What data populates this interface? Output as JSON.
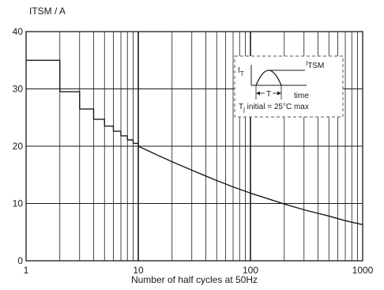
{
  "chart_data": {
    "type": "line",
    "ylabel": "ITSM / A",
    "xlabel": "Number of half cycles at 50Hz",
    "x_scale": "log",
    "xlim": [
      1,
      1000
    ],
    "ylim": [
      0,
      40
    ],
    "grid": true,
    "x_ticks": [
      {
        "value": 1,
        "label": "1"
      },
      {
        "value": 10,
        "label": "10"
      },
      {
        "value": 100,
        "label": "100"
      },
      {
        "value": 1000,
        "label": "1000"
      }
    ],
    "y_ticks": [
      {
        "value": 0,
        "label": "0"
      },
      {
        "value": 10,
        "label": "10"
      },
      {
        "value": 20,
        "label": "20"
      },
      {
        "value": 30,
        "label": "30"
      },
      {
        "value": 40,
        "label": "40"
      }
    ],
    "series": [
      {
        "x": [
          1,
          2,
          3,
          4,
          5,
          6,
          7,
          8,
          9,
          10,
          15,
          20,
          30,
          50,
          70,
          100,
          150,
          200,
          300,
          500,
          700,
          1000
        ],
        "y": [
          35,
          29.5,
          26.5,
          24.7,
          23.5,
          22.6,
          21.8,
          21.1,
          20.5,
          20,
          18.4,
          17.3,
          15.8,
          14,
          12.9,
          11.8,
          10.7,
          9.9,
          8.9,
          7.8,
          7,
          6.3
        ],
        "step_until": 10
      }
    ],
    "inset": {
      "position": "top-right",
      "peak_label_main": "I",
      "peak_label_sub": "TSM",
      "axis_label_main": "I",
      "axis_label_sub": "T",
      "period_label": "T",
      "time_label": "time",
      "condition_main": "T",
      "condition_sub": "j",
      "condition_text": " initial = 25°C max"
    }
  }
}
